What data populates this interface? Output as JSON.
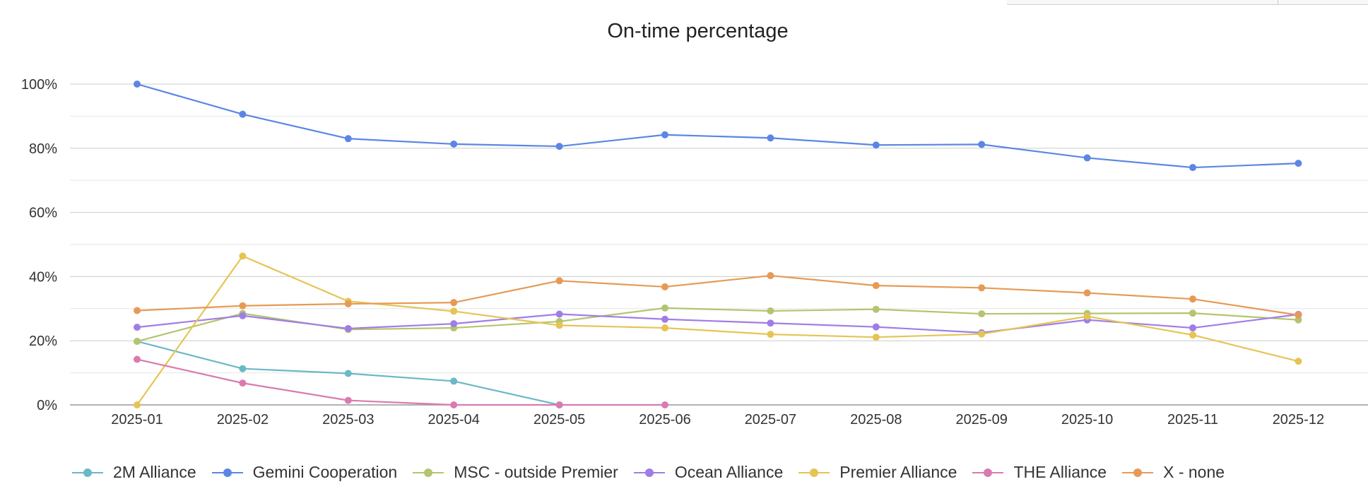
{
  "chart_data": {
    "type": "line",
    "title": "On-time percentage",
    "xlabel": "",
    "ylabel": "",
    "categories": [
      "2025-01",
      "2025-02",
      "2025-03",
      "2025-04",
      "2025-05",
      "2025-06",
      "2025-07",
      "2025-08",
      "2025-09",
      "2025-10",
      "2025-11",
      "2025-12"
    ],
    "ylim": [
      0,
      100
    ],
    "yticks": [
      0,
      20,
      40,
      60,
      80,
      100
    ],
    "ytick_labels": [
      "0%",
      "20%",
      "40%",
      "60%",
      "80%",
      "100%"
    ],
    "minor_gridlines": true,
    "legend_position": "bottom",
    "series": [
      {
        "name": "2M Alliance",
        "color": "#6bb8c6",
        "values": [
          19.8,
          11.3,
          9.8,
          7.4,
          0,
          null,
          null,
          null,
          null,
          null,
          null,
          null
        ]
      },
      {
        "name": "Gemini Cooperation",
        "color": "#5b86e5",
        "values": [
          100,
          90.6,
          83.0,
          81.3,
          80.6,
          84.2,
          83.2,
          81.0,
          81.2,
          77.0,
          74.0,
          75.3
        ]
      },
      {
        "name": "MSC - outside Premier",
        "color": "#b3c56e",
        "values": [
          19.8,
          28.5,
          23.5,
          24.0,
          26.0,
          30.2,
          29.3,
          29.8,
          28.4,
          28.5,
          28.6,
          26.5
        ]
      },
      {
        "name": "Ocean Alliance",
        "color": "#a07de6",
        "values": [
          24.2,
          27.8,
          23.8,
          25.3,
          28.3,
          26.7,
          25.5,
          24.3,
          22.5,
          26.5,
          24.0,
          28.2
        ]
      },
      {
        "name": "Premier Alliance",
        "color": "#e6c454",
        "values": [
          0,
          46.4,
          32.3,
          29.2,
          24.8,
          24.0,
          22.0,
          21.1,
          22.1,
          27.6,
          21.8,
          13.6
        ]
      },
      {
        "name": "THE Alliance",
        "color": "#d97bb0",
        "values": [
          14.2,
          6.8,
          1.4,
          0,
          0,
          0,
          null,
          null,
          null,
          null,
          null,
          null
        ]
      },
      {
        "name": "X - none",
        "color": "#e69a56",
        "values": [
          29.4,
          30.9,
          31.5,
          31.9,
          38.7,
          36.8,
          40.3,
          37.2,
          36.5,
          34.9,
          33.0,
          28.0
        ]
      }
    ]
  }
}
